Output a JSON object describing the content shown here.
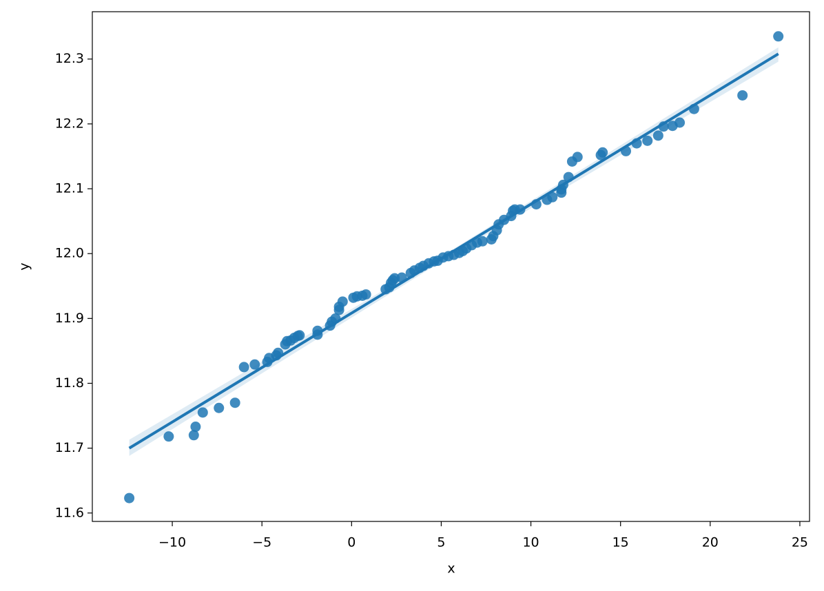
{
  "chart_data": {
    "type": "scatter",
    "x_label": "x",
    "y_label": "y",
    "color": "#1f77b4",
    "grid": false,
    "xlim": [
      -14.46,
      25.54
    ],
    "ylim": [
      11.587,
      12.373
    ],
    "xticks": [
      {
        "value": -10,
        "label": "−10"
      },
      {
        "value": -5,
        "label": "−5"
      },
      0,
      5,
      10,
      15,
      20,
      25
    ],
    "yticks": [
      11.6,
      11.7,
      11.8,
      11.9,
      {
        "value": 12,
        "label": "12.0"
      },
      12.1,
      12.2,
      12.3
    ],
    "x": [
      -12.4,
      -10.2,
      -8.8,
      -8.7,
      -8.3,
      -7.4,
      -6.5,
      -6.0,
      -5.4,
      -4.7,
      -4.6,
      -4.2,
      -4.1,
      -3.7,
      -3.6,
      -3.4,
      -3.2,
      -3.0,
      -2.9,
      -1.9,
      -1.9,
      -1.2,
      -1.1,
      -0.9,
      -0.7,
      -0.7,
      -0.5,
      0.1,
      0.3,
      0.6,
      0.8,
      1.9,
      2.1,
      2.2,
      2.3,
      2.4,
      2.8,
      3.3,
      3.5,
      3.8,
      4.0,
      4.3,
      4.6,
      4.8,
      5.1,
      5.4,
      5.7,
      6.0,
      6.2,
      6.4,
      6.7,
      7.0,
      7.3,
      7.8,
      7.9,
      8.1,
      8.2,
      8.5,
      8.9,
      9.0,
      9.1,
      9.4,
      10.3,
      10.9,
      11.2,
      11.7,
      11.7,
      11.8,
      12.1,
      12.3,
      12.6,
      13.9,
      14.0,
      15.3,
      15.9,
      16.5,
      17.1,
      17.4,
      17.9,
      18.3,
      19.1,
      21.8,
      23.8
    ],
    "y": [
      11.623,
      11.718,
      11.72,
      11.733,
      11.755,
      11.762,
      11.77,
      11.825,
      11.829,
      11.833,
      11.839,
      11.843,
      11.847,
      11.86,
      11.865,
      11.866,
      11.87,
      11.873,
      11.874,
      11.875,
      11.881,
      11.889,
      11.895,
      11.9,
      11.913,
      11.918,
      11.926,
      11.932,
      11.934,
      11.935,
      11.937,
      11.945,
      11.948,
      11.955,
      11.959,
      11.962,
      11.963,
      11.97,
      11.974,
      11.978,
      11.981,
      11.985,
      11.988,
      11.989,
      11.994,
      11.996,
      11.998,
      12.001,
      12.004,
      12.008,
      12.013,
      12.017,
      12.019,
      12.022,
      12.027,
      12.036,
      12.045,
      12.052,
      12.058,
      12.066,
      12.068,
      12.068,
      12.076,
      12.083,
      12.087,
      12.094,
      12.099,
      12.106,
      12.118,
      12.142,
      12.149,
      12.152,
      12.156,
      12.158,
      12.17,
      12.174,
      12.182,
      12.196,
      12.197,
      12.202,
      12.223,
      12.244,
      12.335
    ],
    "regression_line": {
      "x": [
        -12.4,
        23.8
      ],
      "y": [
        11.7,
        12.308
      ]
    },
    "confidence_band": {
      "x": [
        -12.4,
        5.5,
        23.8
      ],
      "lower": [
        11.688,
        11.996,
        12.296
      ],
      "upper": [
        11.713,
        12.004,
        12.318
      ]
    }
  }
}
